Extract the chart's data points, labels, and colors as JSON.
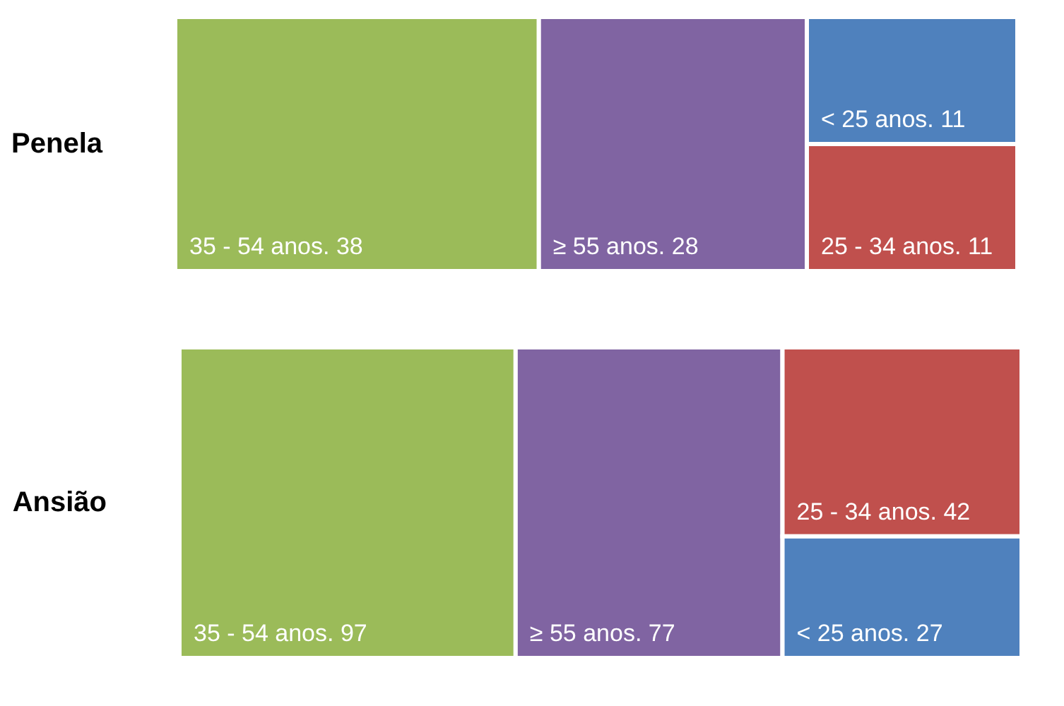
{
  "chart_data": [
    {
      "type": "other",
      "title": "Penela",
      "categories": [
        "35 - 54 anos.",
        "≥ 55 anos.",
        "< 25 anos.",
        "25 - 34 anos."
      ],
      "values": [
        38,
        28,
        11,
        11
      ],
      "colors": [
        "#9bbb59",
        "#8064a2",
        "#4f81bd",
        "#c0504d"
      ],
      "data_labels": true
    },
    {
      "type": "other",
      "title": "Ansião",
      "categories": [
        "35 - 54 anos.",
        "≥ 55 anos.",
        "25 - 34 anos.",
        "< 25 anos."
      ],
      "values": [
        97,
        77,
        42,
        27
      ],
      "colors": [
        "#9bbb59",
        "#8064a2",
        "#c0504d",
        "#4f81bd"
      ],
      "data_labels": true
    }
  ]
}
